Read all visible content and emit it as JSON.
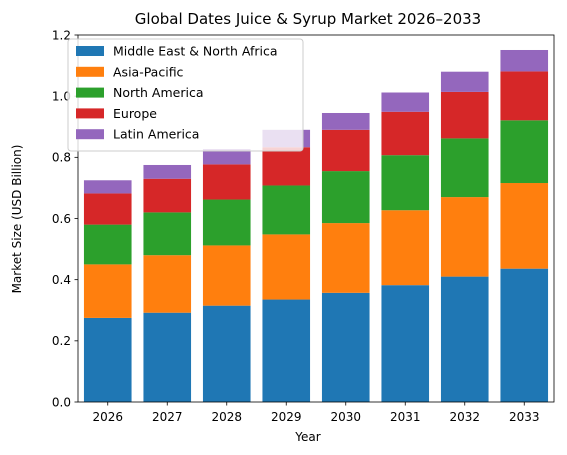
{
  "chart_data": {
    "type": "bar",
    "stacked": true,
    "title": "Global Dates Juice & Syrup Market 2026–2033",
    "xlabel": "Year",
    "ylabel": "Market Size (USD Billion)",
    "ylim": [
      0,
      1.2
    ],
    "yticks": [
      "0.0",
      "0.2",
      "0.4",
      "0.6",
      "0.8",
      "1.0",
      "1.2"
    ],
    "categories": [
      "2026",
      "2027",
      "2028",
      "2029",
      "2030",
      "2031",
      "2032",
      "2033"
    ],
    "grid": false,
    "legend_position": "upper-left",
    "series": [
      {
        "name": "Middle East & North Africa",
        "color": "#1f77b4",
        "values": [
          0.275,
          0.292,
          0.315,
          0.335,
          0.357,
          0.382,
          0.41,
          0.436
        ]
      },
      {
        "name": "Asia-Pacific",
        "color": "#ff7f0e",
        "values": [
          0.175,
          0.188,
          0.197,
          0.213,
          0.228,
          0.245,
          0.26,
          0.28
        ]
      },
      {
        "name": "North America",
        "color": "#2ca02c",
        "values": [
          0.13,
          0.14,
          0.15,
          0.16,
          0.17,
          0.18,
          0.192,
          0.205
        ]
      },
      {
        "name": "Europe",
        "color": "#d62728",
        "values": [
          0.102,
          0.11,
          0.115,
          0.125,
          0.135,
          0.142,
          0.152,
          0.16
        ]
      },
      {
        "name": "Latin America",
        "color": "#9467bd",
        "values": [
          0.043,
          0.045,
          0.05,
          0.057,
          0.055,
          0.063,
          0.066,
          0.07
        ]
      }
    ]
  }
}
